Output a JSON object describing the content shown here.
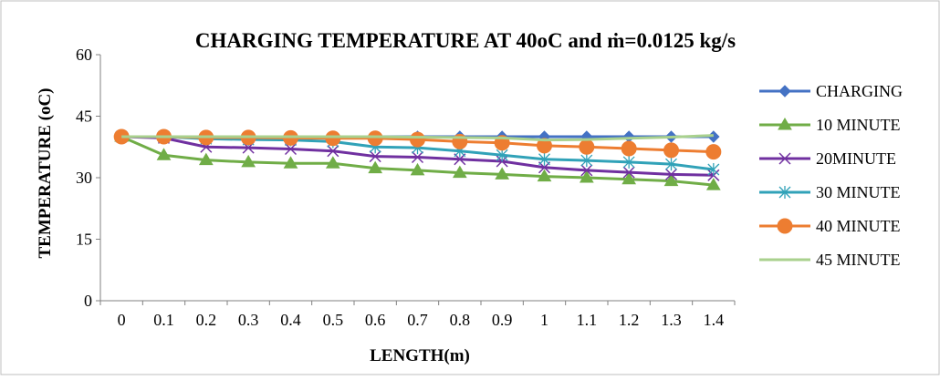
{
  "chart_data": {
    "type": "line",
    "title": "CHARGING TEMPERATURE  AT 40oC and ṁ=0.0125 kg/s",
    "xlabel": "LENGTH(m)",
    "ylabel": "TEMPERATURE (oC)",
    "categories": [
      "0",
      "0.1",
      "0.2",
      "0.3",
      "0.4",
      "0.5",
      "0.6",
      "0.7",
      "0.8",
      "0.9",
      "1",
      "1.1",
      "1.2",
      "1.3",
      "1.4"
    ],
    "ylim": [
      0,
      60
    ],
    "yticks": [
      "0",
      "15",
      "30",
      "45",
      "60"
    ],
    "grid": false,
    "legend_position": "right",
    "series": [
      {
        "name": "CHARGING",
        "color": "#4472C4",
        "marker": "diamond",
        "values": [
          40,
          40,
          40,
          40,
          40,
          40,
          40,
          40,
          40,
          40,
          40,
          40,
          40,
          40,
          40
        ]
      },
      {
        "name": "10 MINUTE",
        "color": "#70AD47",
        "marker": "triangle",
        "values": [
          40,
          35.5,
          34.3,
          33.8,
          33.5,
          33.5,
          32.3,
          31.8,
          31.2,
          30.8,
          30.3,
          30,
          29.6,
          29.2,
          28.2
        ]
      },
      {
        "name": "20MINUTE",
        "color": "#7030A0",
        "marker": "x",
        "values": [
          40,
          39.7,
          37.5,
          37.3,
          37,
          36.5,
          35.2,
          35,
          34.5,
          34,
          32.5,
          31.8,
          31.3,
          30.8,
          30.6
        ]
      },
      {
        "name": "30 MINUTE",
        "color": "#31A2B8",
        "marker": "star",
        "values": [
          40,
          40,
          39.5,
          39.3,
          39.2,
          38.8,
          37.5,
          37.3,
          36.5,
          35.5,
          34.5,
          34.2,
          33.8,
          33.3,
          32
        ]
      },
      {
        "name": "40 MINUTE",
        "color": "#ED7D31",
        "marker": "circle",
        "values": [
          40,
          40,
          39.8,
          39.8,
          39.7,
          39.6,
          39.6,
          39.3,
          38.8,
          38.5,
          37.8,
          37.5,
          37.1,
          36.7,
          36.3
        ]
      },
      {
        "name": "45 MINUTE",
        "color": "#A9D18E",
        "marker": "none",
        "values": [
          40,
          40,
          40,
          40,
          40,
          40,
          40,
          39.9,
          39.8,
          39.7,
          39.2,
          39.3,
          39.6,
          39.9,
          40.3
        ]
      }
    ]
  }
}
